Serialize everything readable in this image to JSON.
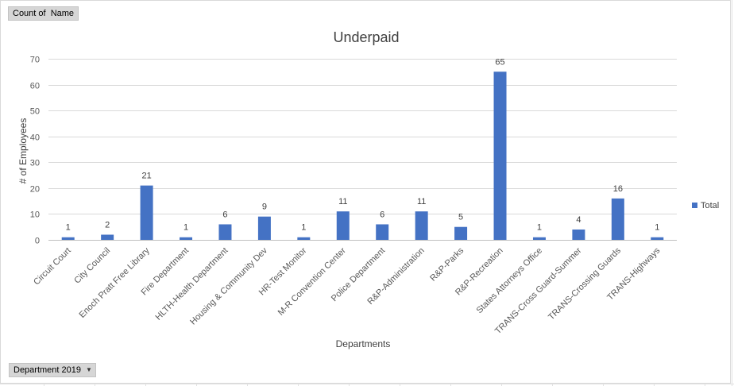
{
  "pivot": {
    "value_field_button": "Count of  Name",
    "filter_button": "Department 2019",
    "filter_icon": "dropdown-arrow-icon"
  },
  "chart_data": {
    "type": "bar",
    "title": "Underpaid",
    "xlabel": "Departments",
    "ylabel": "# of Employees",
    "ylim": [
      0,
      70
    ],
    "yticks": [
      0,
      10,
      20,
      30,
      40,
      50,
      60,
      70
    ],
    "grid": true,
    "legend_position": "right",
    "bar_color": "#4472c4",
    "categories": [
      "Circuit Court",
      "City Council",
      "Enoch Pratt Free Library",
      "Fire Department",
      "HLTH-Health Department",
      "Housing & Community Dev",
      "HR-Test Monitor",
      "M-R Convention Center",
      "Police Department",
      "R&P-Administration",
      "R&P-Parks",
      "R&P-Recreation",
      "States Attorneys Office",
      "TRANS-Cross Guard-Summer",
      "TRANS-Crossing Guards",
      "TRANS-Highways"
    ],
    "series": [
      {
        "name": "Total",
        "values": [
          1,
          2,
          21,
          1,
          6,
          9,
          1,
          11,
          6,
          11,
          5,
          65,
          1,
          4,
          16,
          1
        ]
      }
    ]
  }
}
